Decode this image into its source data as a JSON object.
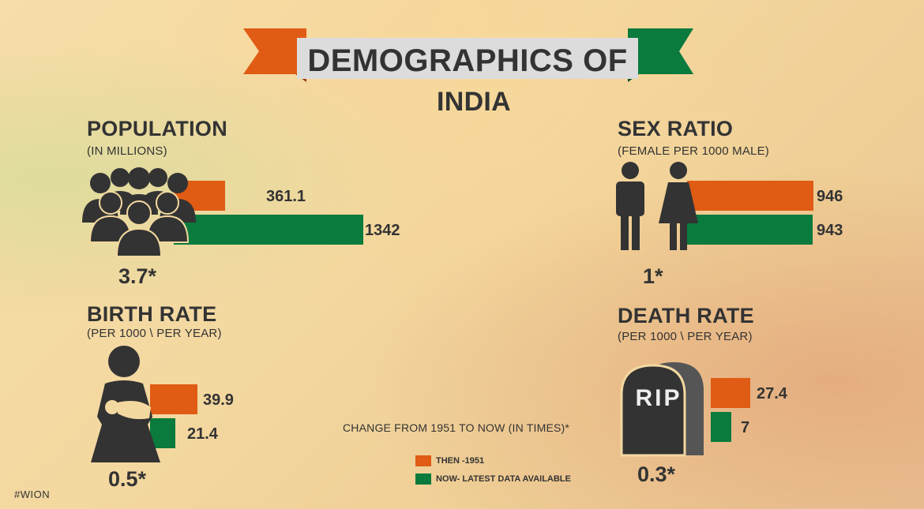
{
  "title_line1": "DEMOGRAPHICS OF",
  "title_line2": "INDIA",
  "colors": {
    "then": "#e05b14",
    "now": "#0a7a3d",
    "icon": "#333333"
  },
  "chart_data": [
    {
      "type": "bar",
      "title": "POPULATION",
      "subtitle": "(IN MILLIONS)",
      "series": [
        {
          "name": "THEN -1951",
          "value": 361.1,
          "label": "361.1"
        },
        {
          "name": "NOW- LATEST DATA AVAILABLE",
          "value": 1342,
          "label": "1342"
        }
      ],
      "change": "3.7*",
      "icon": "crowd-icon"
    },
    {
      "type": "bar",
      "title": "SEX RATIO",
      "subtitle": "(FEMALE PER 1000 MALE)",
      "series": [
        {
          "name": "THEN -1951",
          "value": 946,
          "label": "946"
        },
        {
          "name": "NOW- LATEST DATA AVAILABLE",
          "value": 943,
          "label": "943"
        }
      ],
      "change": "1*",
      "icon": "man-woman-icon"
    },
    {
      "type": "bar",
      "title": "BIRTH RATE",
      "subtitle": "(PER 1000 \\ PER YEAR)",
      "series": [
        {
          "name": "THEN -1951",
          "value": 39.9,
          "label": "39.9"
        },
        {
          "name": "NOW- LATEST DATA AVAILABLE",
          "value": 21.4,
          "label": "21.4"
        }
      ],
      "change": "0.5*",
      "icon": "mother-baby-icon"
    },
    {
      "type": "bar",
      "title": "DEATH RATE",
      "subtitle": "(PER 1000 \\ PER YEAR)",
      "series": [
        {
          "name": "THEN -1951",
          "value": 27.4,
          "label": "27.4"
        },
        {
          "name": "NOW- LATEST DATA AVAILABLE",
          "value": 7,
          "label": "7"
        }
      ],
      "change": "0.3*",
      "icon": "tombstone-icon",
      "icon_text": "RIP"
    }
  ],
  "note": "CHANGE FROM 1951 TO NOW (IN TIMES)*",
  "legend": [
    {
      "label": "THEN -1951",
      "color": "#e05b14"
    },
    {
      "label": "NOW- LATEST DATA AVAILABLE",
      "color": "#0a7a3d"
    }
  ],
  "watermark": "#WION"
}
